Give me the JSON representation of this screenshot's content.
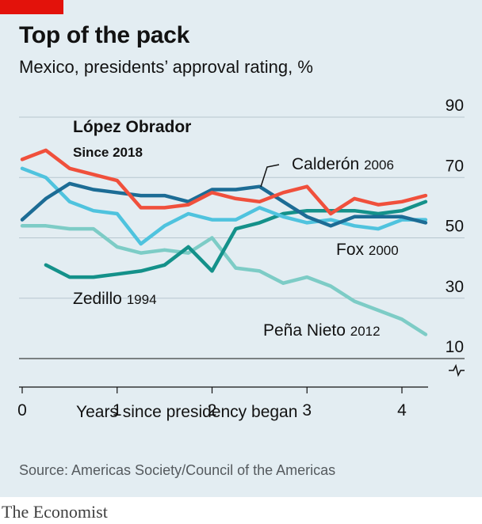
{
  "header": {
    "title": "Top of the pack",
    "subtitle": "Mexico, presidents’ approval rating, %"
  },
  "footer": {
    "source": "Source: Americas Society/Council of the Americas",
    "brand": "The Economist"
  },
  "colors": {
    "background": "#e3edf2",
    "brand_red": "#e3120b",
    "lopez_obrador": "#f0503c",
    "calderon": "#1c6c95",
    "fox": "#4fc3de",
    "pena_nieto": "#7dccc6",
    "zedillo": "#14918a"
  },
  "chart_data": {
    "type": "line",
    "title": "Top of the pack",
    "subtitle": "Mexico, presidents’ approval rating, %",
    "xlabel": "Years since presidency began",
    "ylabel": "",
    "xlim": [
      0,
      4.25
    ],
    "ylim": [
      10,
      90
    ],
    "x_ticks": [
      0,
      1,
      2,
      3,
      4
    ],
    "x_tick_labels": [
      "0",
      "1",
      "2",
      "3",
      "4"
    ],
    "y_ticks": [
      10,
      30,
      50,
      70,
      90
    ],
    "y_tick_labels": [
      "10",
      "30",
      "50",
      "70",
      "90"
    ],
    "axis_break_symbol": "-⁄/-",
    "series": [
      {
        "name": "Peña Nieto 2012",
        "label_name": "Peña Nieto",
        "label_year": "2012",
        "color": "#7dccc6",
        "x": [
          0,
          0.25,
          0.5,
          0.75,
          1,
          1.25,
          1.5,
          1.75,
          2,
          2.25,
          2.5,
          2.75,
          3,
          3.25,
          3.5,
          3.75,
          4,
          4.25
        ],
        "values": [
          54,
          54,
          53,
          53,
          47,
          45,
          46,
          45,
          50,
          40,
          39,
          35,
          37,
          34,
          29,
          26,
          23,
          18
        ]
      },
      {
        "name": "Zedillo 1994",
        "label_name": "Zedillo",
        "label_year": "1994",
        "color": "#14918a",
        "x": [
          0.25,
          0.5,
          0.75,
          1,
          1.25,
          1.5,
          1.75,
          2,
          2.25,
          2.5,
          2.75,
          3,
          3.25,
          3.5,
          3.75,
          4,
          4.25
        ],
        "values": [
          41,
          37,
          37,
          38,
          39,
          41,
          47,
          39,
          53,
          55,
          58,
          59,
          59,
          59,
          58,
          59,
          62
        ]
      },
      {
        "name": "Fox 2000",
        "label_name": "Fox",
        "label_year": "2000",
        "color": "#4fc3de",
        "x": [
          0,
          0.25,
          0.5,
          0.75,
          1,
          1.25,
          1.5,
          1.75,
          2,
          2.25,
          2.5,
          2.75,
          3,
          3.25,
          3.5,
          3.75,
          4,
          4.25
        ],
        "values": [
          73,
          70,
          62,
          59,
          58,
          48,
          54,
          58,
          56,
          56,
          60,
          57,
          55,
          56,
          54,
          53,
          56,
          56
        ]
      },
      {
        "name": "Calderón 2006",
        "label_name": "Calderón",
        "label_year": "2006",
        "color": "#1c6c95",
        "x": [
          0,
          0.25,
          0.5,
          0.75,
          1,
          1.25,
          1.5,
          1.75,
          2,
          2.25,
          2.5,
          2.75,
          3,
          3.25,
          3.5,
          3.75,
          4,
          4.25
        ],
        "values": [
          56,
          63,
          68,
          66,
          65,
          64,
          64,
          62,
          66,
          66,
          67,
          62,
          57,
          54,
          57,
          57,
          57,
          55
        ]
      },
      {
        "name": "López Obrador Since 2018",
        "label_name": "López Obrador",
        "label_year": "Since 2018",
        "color": "#f0503c",
        "x": [
          0,
          0.25,
          0.5,
          0.75,
          1,
          1.25,
          1.5,
          1.75,
          2,
          2.25,
          2.5,
          2.75,
          3,
          3.25,
          3.5,
          3.75,
          4,
          4.25
        ],
        "values": [
          76,
          79,
          73,
          71,
          69,
          60,
          60,
          61,
          65,
          63,
          62,
          65,
          67,
          58,
          63,
          61,
          62,
          64
        ]
      }
    ]
  }
}
